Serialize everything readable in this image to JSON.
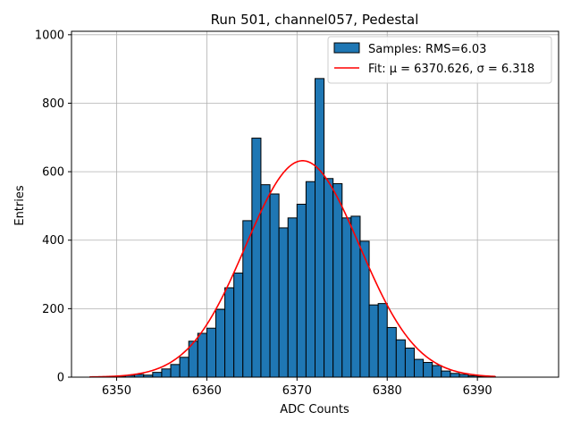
{
  "chart_data": {
    "type": "bar",
    "title": "Run 501, channel057, Pedestal",
    "xlabel": "ADC Counts",
    "ylabel": "Entries",
    "xlim": [
      6345,
      6399
    ],
    "ylim": [
      0,
      1010
    ],
    "xticks": [
      6350,
      6360,
      6370,
      6380,
      6390
    ],
    "yticks": [
      0,
      200,
      400,
      600,
      800,
      1000
    ],
    "grid": true,
    "legend_position": "top-right",
    "colors": {
      "bar_fill": "#1f77b4",
      "bar_edge": "#000000",
      "fit_line": "#ff0000",
      "grid": "#b0b0b0"
    },
    "histogram": {
      "name": "Samples: RMS=6.03",
      "bin_left_edges": [
        6347,
        6348,
        6349,
        6350,
        6351,
        6352,
        6353,
        6354,
        6355,
        6356,
        6357,
        6358,
        6359,
        6360,
        6361,
        6362,
        6363,
        6364,
        6365,
        6366,
        6367,
        6368,
        6369,
        6370,
        6371,
        6372,
        6373,
        6374,
        6375,
        6376,
        6377,
        6378,
        6379,
        6380,
        6381,
        6382,
        6383,
        6384,
        6385,
        6386,
        6387,
        6388,
        6389,
        6390,
        6391
      ],
      "counts": [
        0,
        1,
        2,
        3,
        5,
        8,
        6,
        14,
        24,
        37,
        58,
        105,
        128,
        143,
        198,
        261,
        304,
        457,
        698,
        562,
        535,
        436,
        465,
        505,
        571,
        872,
        580,
        565,
        465,
        470,
        397,
        211,
        215,
        145,
        109,
        85,
        52,
        43,
        34,
        18,
        11,
        8,
        4,
        2,
        1
      ]
    },
    "fit": {
      "name": "Fit: μ = 6370.626, σ = 6.318",
      "mu": 6370.626,
      "sigma": 6.318,
      "amplitude": 632,
      "x_range": [
        6347,
        6392
      ]
    }
  }
}
